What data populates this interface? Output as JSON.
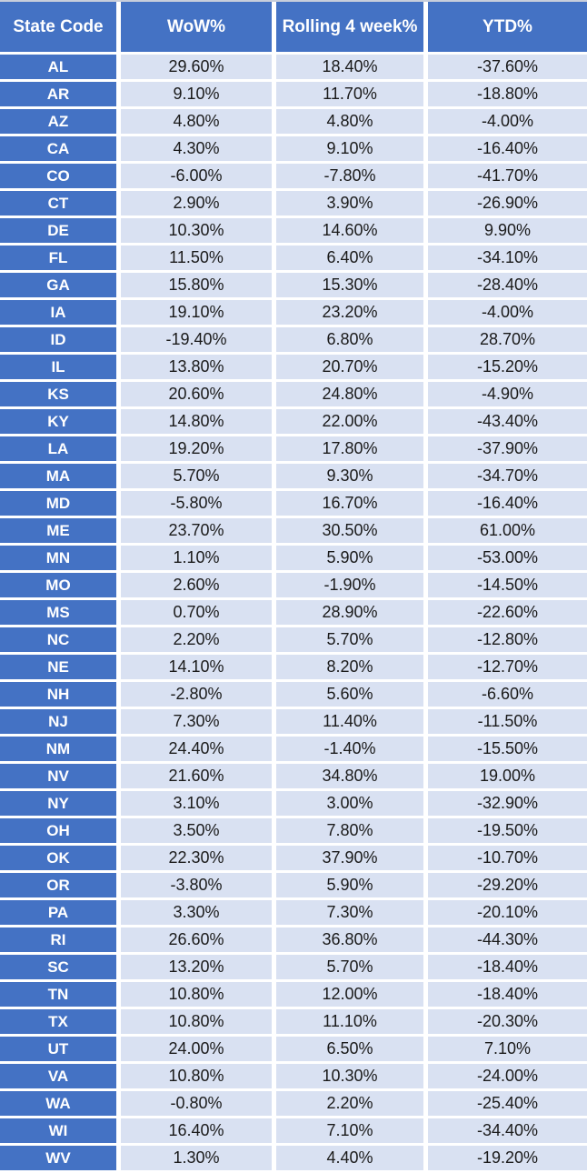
{
  "chart_data": {
    "type": "table",
    "title": "",
    "columns": [
      "State Code",
      "WoW%",
      "Rolling 4 week%",
      "YTD%"
    ],
    "rows": [
      [
        "AL",
        "29.60%",
        "18.40%",
        "-37.60%"
      ],
      [
        "AR",
        "9.10%",
        "11.70%",
        "-18.80%"
      ],
      [
        "AZ",
        "4.80%",
        "4.80%",
        "-4.00%"
      ],
      [
        "CA",
        "4.30%",
        "9.10%",
        "-16.40%"
      ],
      [
        "CO",
        "-6.00%",
        "-7.80%",
        "-41.70%"
      ],
      [
        "CT",
        "2.90%",
        "3.90%",
        "-26.90%"
      ],
      [
        "DE",
        "10.30%",
        "14.60%",
        "9.90%"
      ],
      [
        "FL",
        "11.50%",
        "6.40%",
        "-34.10%"
      ],
      [
        "GA",
        "15.80%",
        "15.30%",
        "-28.40%"
      ],
      [
        "IA",
        "19.10%",
        "23.20%",
        "-4.00%"
      ],
      [
        "ID",
        "-19.40%",
        "6.80%",
        "28.70%"
      ],
      [
        "IL",
        "13.80%",
        "20.70%",
        "-15.20%"
      ],
      [
        "KS",
        "20.60%",
        "24.80%",
        "-4.90%"
      ],
      [
        "KY",
        "14.80%",
        "22.00%",
        "-43.40%"
      ],
      [
        "LA",
        "19.20%",
        "17.80%",
        "-37.90%"
      ],
      [
        "MA",
        "5.70%",
        "9.30%",
        "-34.70%"
      ],
      [
        "MD",
        "-5.80%",
        "16.70%",
        "-16.40%"
      ],
      [
        "ME",
        "23.70%",
        "30.50%",
        "61.00%"
      ],
      [
        "MN",
        "1.10%",
        "5.90%",
        "-53.00%"
      ],
      [
        "MO",
        "2.60%",
        "-1.90%",
        "-14.50%"
      ],
      [
        "MS",
        "0.70%",
        "28.90%",
        "-22.60%"
      ],
      [
        "NC",
        "2.20%",
        "5.70%",
        "-12.80%"
      ],
      [
        "NE",
        "14.10%",
        "8.20%",
        "-12.70%"
      ],
      [
        "NH",
        "-2.80%",
        "5.60%",
        "-6.60%"
      ],
      [
        "NJ",
        "7.30%",
        "11.40%",
        "-11.50%"
      ],
      [
        "NM",
        "24.40%",
        "-1.40%",
        "-15.50%"
      ],
      [
        "NV",
        "21.60%",
        "34.80%",
        "19.00%"
      ],
      [
        "NY",
        "3.10%",
        "3.00%",
        "-32.90%"
      ],
      [
        "OH",
        "3.50%",
        "7.80%",
        "-19.50%"
      ],
      [
        "OK",
        "22.30%",
        "37.90%",
        "-10.70%"
      ],
      [
        "OR",
        "-3.80%",
        "5.90%",
        "-29.20%"
      ],
      [
        "PA",
        "3.30%",
        "7.30%",
        "-20.10%"
      ],
      [
        "RI",
        "26.60%",
        "36.80%",
        "-44.30%"
      ],
      [
        "SC",
        "13.20%",
        "5.70%",
        "-18.40%"
      ],
      [
        "TN",
        "10.80%",
        "12.00%",
        "-18.40%"
      ],
      [
        "TX",
        "10.80%",
        "11.10%",
        "-20.30%"
      ],
      [
        "UT",
        "24.00%",
        "6.50%",
        "7.10%"
      ],
      [
        "VA",
        "10.80%",
        "10.30%",
        "-24.00%"
      ],
      [
        "WA",
        "-0.80%",
        "2.20%",
        "-25.40%"
      ],
      [
        "WI",
        "16.40%",
        "7.10%",
        "-34.40%"
      ],
      [
        "WV",
        "1.30%",
        "4.40%",
        "-19.20%"
      ]
    ]
  },
  "colors": {
    "header_bg": "#4472C4",
    "state_bg": "#4472C4",
    "cell_bg": "#D9E1F2",
    "gridline": "#FFFFFF",
    "header_text": "#FFFFFF",
    "data_text": "#1A1A1A",
    "top_edge": "#C8CEDB"
  }
}
